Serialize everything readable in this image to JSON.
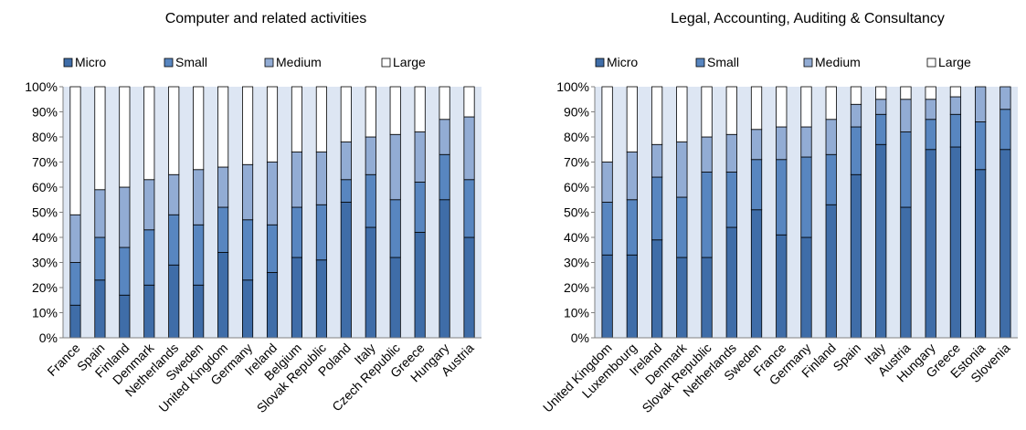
{
  "legend": [
    "Micro",
    "Small",
    "Medium",
    "Large"
  ],
  "colors": {
    "Micro": "#3f6da8",
    "Small": "#5886c0",
    "Medium": "#92acd4",
    "Large": "#ffffff",
    "plot_bg": "#dde6f3",
    "gridline": "#ffffff",
    "axis": "#808080"
  },
  "chart_data": [
    {
      "type": "bar",
      "stacked": true,
      "title": "Computer and related activities",
      "xlabel": "",
      "ylabel": "",
      "ylim": [
        0,
        100
      ],
      "yticks": [
        "0%",
        "10%",
        "20%",
        "30%",
        "40%",
        "50%",
        "60%",
        "70%",
        "80%",
        "90%",
        "100%"
      ],
      "legend_position": "top",
      "categories": [
        "France",
        "Spain",
        "Finland",
        "Denmark",
        "Netherlands",
        "Sweden",
        "United Kingdom",
        "Germany",
        "Ireland",
        "Belgium",
        "Slovak Republic",
        "Poland",
        "Italy",
        "Czech Republic",
        "Greece",
        "Hungary",
        "Austria"
      ],
      "series": [
        {
          "name": "Micro",
          "values": [
            13,
            23,
            17,
            21,
            29,
            21,
            34,
            23,
            26,
            32,
            31,
            54,
            44,
            32,
            42,
            55,
            40
          ]
        },
        {
          "name": "Small",
          "values": [
            17,
            17,
            19,
            22,
            20,
            24,
            18,
            24,
            19,
            20,
            22,
            9,
            21,
            23,
            20,
            18,
            23
          ]
        },
        {
          "name": "Medium",
          "values": [
            19,
            19,
            24,
            20,
            16,
            22,
            16,
            22,
            25,
            22,
            21,
            15,
            15,
            26,
            20,
            14,
            25
          ]
        },
        {
          "name": "Large",
          "values": [
            51,
            41,
            40,
            37,
            35,
            33,
            32,
            31,
            30,
            26,
            26,
            22,
            20,
            19,
            18,
            13,
            12
          ]
        }
      ]
    },
    {
      "type": "bar",
      "stacked": true,
      "title": "Legal, Accounting, Auditing & Consultancy",
      "xlabel": "",
      "ylabel": "",
      "ylim": [
        0,
        100
      ],
      "yticks": [
        "0%",
        "10%",
        "20%",
        "30%",
        "40%",
        "50%",
        "60%",
        "70%",
        "80%",
        "90%",
        "100%"
      ],
      "legend_position": "top",
      "categories": [
        "United Kingdom",
        "Luxembourg",
        "Ireland",
        "Denmark",
        "Slovak Republic",
        "Netherlands",
        "Sweden",
        "France",
        "Germany",
        "Finland",
        "Spain",
        "Italy",
        "Austria",
        "Hungary",
        "Greece",
        "Estonia",
        "Slovenia"
      ],
      "series": [
        {
          "name": "Micro",
          "values": [
            33,
            33,
            39,
            32,
            32,
            44,
            51,
            41,
            40,
            53,
            65,
            77,
            52,
            75,
            76,
            67,
            75
          ]
        },
        {
          "name": "Small",
          "values": [
            21,
            22,
            25,
            24,
            34,
            22,
            20,
            30,
            32,
            20,
            19,
            12,
            30,
            12,
            13,
            19,
            16
          ]
        },
        {
          "name": "Medium",
          "values": [
            16,
            19,
            13,
            22,
            14,
            15,
            12,
            13,
            12,
            14,
            9,
            6,
            13,
            8,
            7,
            14,
            9
          ]
        },
        {
          "name": "Large",
          "values": [
            30,
            26,
            23,
            22,
            20,
            19,
            17,
            16,
            16,
            13,
            7,
            5,
            5,
            5,
            4,
            0,
            0
          ]
        }
      ]
    }
  ]
}
